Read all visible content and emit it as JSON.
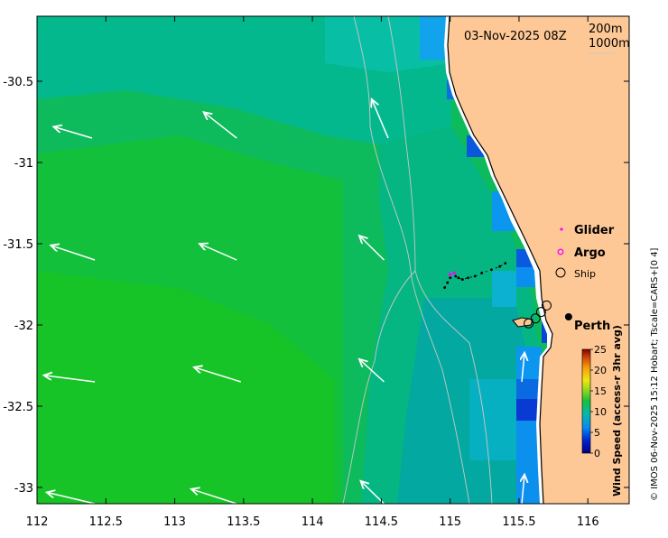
{
  "map": {
    "timestamp": "03-Nov-2025 08Z",
    "isobath_labels": [
      "200m",
      "1000m"
    ],
    "city_label": "Perth",
    "colorbar": {
      "title": "Wind Speed (access-r 3hr avg)",
      "ticks": [
        0,
        5,
        10,
        15,
        20,
        25
      ],
      "range": [
        0,
        25
      ]
    },
    "legend": {
      "glider": "Glider",
      "argo": "Argo",
      "ship": "Ship"
    },
    "credit": "© IMOS 06-Nov-2025 15:12 Hobart; Tscale=CARS+[0 4]",
    "x_axis": {
      "ticks": [
        "112",
        "112.5",
        "113",
        "113.5",
        "114",
        "114.5",
        "115",
        "115.5",
        "116"
      ],
      "range": [
        112,
        116.3
      ]
    },
    "y_axis": {
      "ticks": [
        "-30.5",
        "-31",
        "-31.5",
        "-32",
        "-32.5",
        "-33"
      ],
      "range": [
        -33.1,
        -30.1
      ]
    },
    "colors": {
      "land": "#fdc896",
      "wind_strong": "#16c224",
      "wind_medium": "#03b38c",
      "wind_weak": "#0c96f0",
      "wind_calm": "#0a3ad4"
    },
    "wind_arrows": [
      {
        "lon": 112.25,
        "lat": -30.05,
        "dlon": -0.22,
        "dlat": 0.07
      },
      {
        "lon": 113.45,
        "lat": -30.05,
        "dlon": -0.1,
        "dlat": 0.08
      },
      {
        "lon": 112.4,
        "lat": -30.85,
        "dlon": -0.28,
        "dlat": 0.07
      },
      {
        "lon": 113.45,
        "lat": -30.85,
        "dlon": -0.24,
        "dlat": 0.16
      },
      {
        "lon": 114.55,
        "lat": -30.85,
        "dlon": -0.12,
        "dlat": 0.24
      },
      {
        "lon": 112.42,
        "lat": -31.6,
        "dlon": -0.32,
        "dlat": 0.09
      },
      {
        "lon": 113.45,
        "lat": -31.6,
        "dlon": -0.27,
        "dlat": 0.1
      },
      {
        "lon": 114.52,
        "lat": -31.6,
        "dlon": -0.18,
        "dlat": 0.15
      },
      {
        "lon": 112.42,
        "lat": -32.35,
        "dlon": -0.37,
        "dlat": 0.04
      },
      {
        "lon": 113.48,
        "lat": -32.35,
        "dlon": -0.34,
        "dlat": 0.09
      },
      {
        "lon": 114.52,
        "lat": -32.35,
        "dlon": -0.18,
        "dlat": 0.14
      },
      {
        "lon": 112.42,
        "lat": -33.1,
        "dlon": -0.35,
        "dlat": 0.07
      },
      {
        "lon": 113.45,
        "lat": -33.1,
        "dlon": -0.33,
        "dlat": 0.09
      },
      {
        "lon": 114.52,
        "lat": -33.1,
        "dlon": -0.17,
        "dlat": 0.14
      },
      {
        "lon": 115.52,
        "lat": -32.35,
        "dlon": 0.02,
        "dlat": 0.18
      },
      {
        "lon": 115.52,
        "lat": -33.1,
        "dlon": 0.02,
        "dlat": 0.18
      }
    ],
    "glider_track": [
      {
        "lon": 114.96,
        "lat": -31.77
      },
      {
        "lon": 114.98,
        "lat": -31.74
      },
      {
        "lon": 115.0,
        "lat": -31.71
      },
      {
        "lon": 115.04,
        "lat": -31.7
      },
      {
        "lon": 115.06,
        "lat": -31.71
      },
      {
        "lon": 115.09,
        "lat": -31.72
      },
      {
        "lon": 115.13,
        "lat": -31.71
      },
      {
        "lon": 115.18,
        "lat": -31.7
      },
      {
        "lon": 115.23,
        "lat": -31.68
      },
      {
        "lon": 115.3,
        "lat": -31.66
      },
      {
        "lon": 115.36,
        "lat": -31.64
      },
      {
        "lon": 115.4,
        "lat": -31.62
      }
    ],
    "glider_positions": [
      {
        "lon": 115.0,
        "lat": -31.69
      },
      {
        "lon": 115.03,
        "lat": -31.68
      }
    ],
    "ship_positions": [
      {
        "lon": 115.57,
        "lat": -31.99
      },
      {
        "lon": 115.62,
        "lat": -31.96
      },
      {
        "lon": 115.66,
        "lat": -31.92
      },
      {
        "lon": 115.7,
        "lat": -31.88
      }
    ],
    "perth": {
      "lon": 115.86,
      "lat": -31.95
    }
  }
}
